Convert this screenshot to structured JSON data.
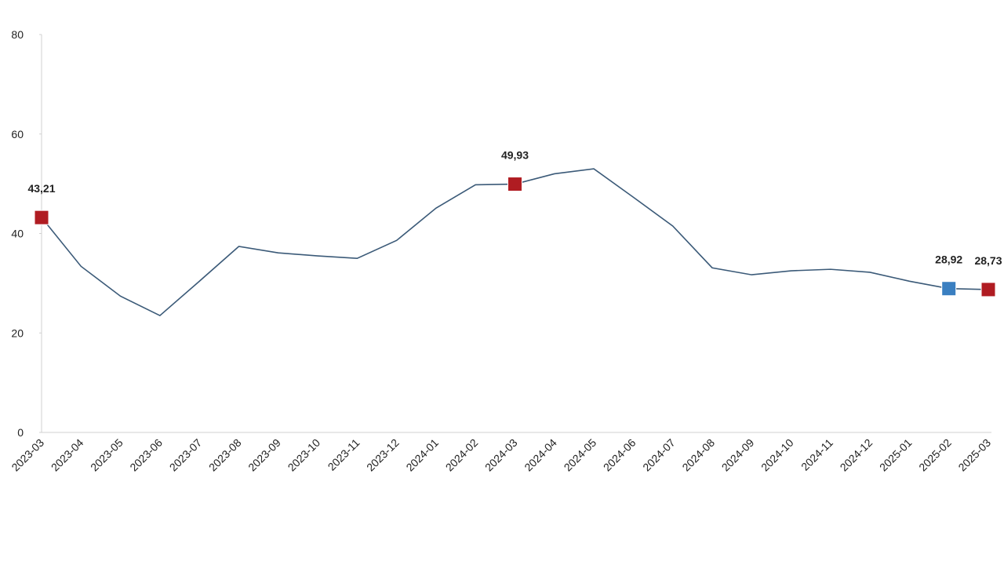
{
  "chart_data": {
    "type": "line",
    "categories": [
      "2023-03",
      "2023-04",
      "2023-05",
      "2023-06",
      "2023-07",
      "2023-08",
      "2023-09",
      "2023-10",
      "2023-11",
      "2023-12",
      "2024-01",
      "2024-02",
      "2024-03",
      "2024-04",
      "2024-05",
      "2024-06",
      "2024-07",
      "2024-08",
      "2024-09",
      "2024-10",
      "2024-11",
      "2024-12",
      "2025-01",
      "2025-02",
      "2025-03"
    ],
    "values": [
      43.21,
      33.4,
      27.4,
      23.5,
      30.4,
      37.4,
      36.1,
      35.5,
      35.0,
      38.6,
      45.1,
      49.8,
      49.93,
      52.0,
      53.0,
      47.3,
      41.5,
      33.1,
      31.7,
      32.5,
      32.8,
      32.2,
      30.4,
      28.92,
      28.73
    ],
    "value_labels": [
      "43,21",
      null,
      null,
      null,
      null,
      null,
      null,
      null,
      null,
      null,
      null,
      null,
      "49,93",
      null,
      null,
      null,
      null,
      null,
      null,
      null,
      null,
      null,
      null,
      "28,92",
      "28,73"
    ],
    "marker_colors": [
      "#b01c22",
      null,
      null,
      null,
      null,
      null,
      null,
      null,
      null,
      null,
      null,
      null,
      "#b01c22",
      null,
      null,
      null,
      null,
      null,
      null,
      null,
      null,
      null,
      null,
      "#3a7fc1",
      "#b01c22"
    ],
    "color": "#3b5a78",
    "ylim": [
      0,
      80
    ],
    "yticks": [
      0,
      20,
      40,
      60,
      80
    ],
    "grid": false
  }
}
